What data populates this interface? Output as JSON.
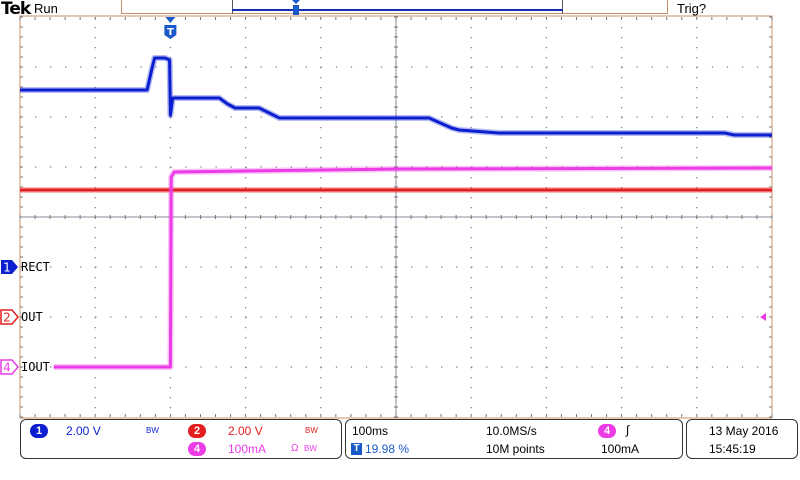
{
  "header": {
    "brand": "Tek",
    "acq_state": "Run",
    "trigger_state": "Trig?"
  },
  "colors": {
    "ch1": "#0b1fd0",
    "ch2": "#e41e1e",
    "ch4": "#ec3ce6",
    "graticule_border": "#c8916a",
    "grid": "#808080"
  },
  "channels": [
    {
      "number": "1",
      "label": "RECT",
      "scale": "2.00 V",
      "bandwidth": "BW",
      "color": "#0b1fd0"
    },
    {
      "number": "2",
      "label": "OUT",
      "scale": "2.00 V",
      "bandwidth": "BW",
      "color": "#e41e1e"
    },
    {
      "number": "4",
      "label": "IOUT",
      "scale": "100mA",
      "termination": "Ω",
      "bandwidth": "BW",
      "color": "#ec3ce6"
    }
  ],
  "horizontal": {
    "time_per_div": "100ms",
    "trigger_position": "19.98 %",
    "sample_rate": "10.0MS/s",
    "record_length": "10M points"
  },
  "trigger": {
    "source": "4",
    "slope": "rising-edge",
    "slope_glyph": "∫",
    "level": "100mA",
    "marker": "T"
  },
  "datetime": {
    "date": "13 May 2016",
    "time": "15:45:19"
  },
  "chart_data": {
    "type": "line",
    "title": "",
    "xlabel": "",
    "ylabel": "",
    "x_units": "ms",
    "xlim": [
      -200,
      800
    ],
    "grid": true,
    "divisions": {
      "horizontal": 10,
      "vertical": 8
    },
    "series": [
      {
        "name": "RECT",
        "channel": "1",
        "units": "V",
        "volts_per_div": 2,
        "ground_div": -1,
        "x": [
          -200,
          -31,
          -25,
          -21,
          -7,
          -1,
          0,
          3,
          65,
          76,
          86,
          118,
          145,
          344,
          374,
          384,
          437,
          737,
          750,
          800
        ],
        "y": [
          7.08,
          7.08,
          7.88,
          8.36,
          8.36,
          8.28,
          6.08,
          6.76,
          6.76,
          6.52,
          6.36,
          6.36,
          5.96,
          5.96,
          5.56,
          5.48,
          5.36,
          5.36,
          5.28,
          5.28
        ]
      },
      {
        "name": "OUT",
        "channel": "2",
        "units": "V",
        "volts_per_div": 2,
        "ground_div": -2,
        "x": [
          -200,
          800
        ],
        "y": [
          5.08,
          5.08
        ]
      },
      {
        "name": "IOUT",
        "channel": "4",
        "units": "mA",
        "volts_per_div": 100,
        "ground_div": -3,
        "x": [
          -155,
          0,
          1,
          5,
          300,
          800
        ],
        "y": [
          0,
          0,
          380,
          390,
          396,
          398
        ]
      }
    ]
  }
}
